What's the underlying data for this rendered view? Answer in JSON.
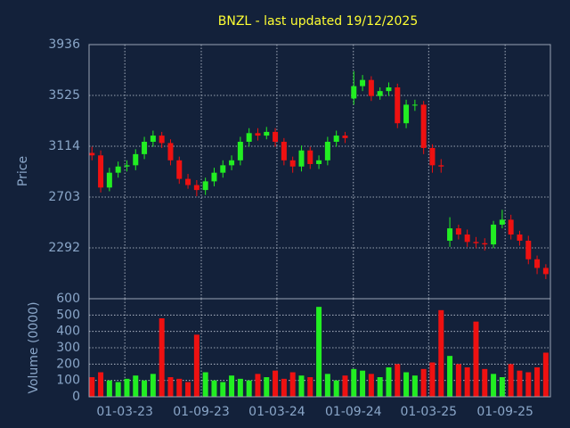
{
  "chart_data": {
    "type": "candlestick",
    "title": "BNZL - last updated 19/12/2025",
    "ylabel": "Price",
    "volume_ylabel": "Volume (0000)",
    "x": [
      "12-12-22",
      "02-01-23",
      "23-01-23",
      "13-02-23",
      "06-03-23",
      "27-03-23",
      "17-04-23",
      "08-05-23",
      "29-05-23",
      "19-06-23",
      "10-07-23",
      "31-07-23",
      "21-08-23",
      "11-09-23",
      "02-10-23",
      "23-10-23",
      "13-11-23",
      "04-12-23",
      "25-12-23",
      "15-01-24",
      "05-02-24",
      "26-02-24",
      "18-03-24",
      "08-04-24",
      "29-04-24",
      "20-05-24",
      "10-06-24",
      "01-07-24",
      "22-07-24",
      "12-08-24",
      "02-09-24",
      "23-09-24",
      "14-10-24",
      "04-11-24",
      "25-11-24",
      "16-12-24",
      "06-01-25",
      "27-01-25",
      "17-02-25",
      "10-03-25",
      "31-03-25",
      "21-04-25",
      "12-05-25",
      "02-06-25",
      "23-06-25",
      "14-07-25",
      "04-08-25",
      "25-08-25",
      "15-09-25",
      "06-10-25",
      "27-10-25",
      "17-11-25",
      "08-12-25"
    ],
    "open": [
      3060,
      3040,
      2780,
      2900,
      2950,
      2960,
      3050,
      3150,
      3200,
      3140,
      3000,
      2850,
      2800,
      2760,
      2830,
      2900,
      2960,
      3000,
      3150,
      3220,
      3200,
      3230,
      3150,
      3000,
      2950,
      3080,
      2970,
      3000,
      3150,
      3200,
      3500,
      3600,
      3650,
      3520,
      3560,
      3590,
      3300,
      3450,
      3450,
      3100,
      2960,
      2350,
      2450,
      2400,
      2340,
      2330,
      2320,
      2480,
      2520,
      2400,
      2350,
      2200,
      2130
    ],
    "high": [
      3110,
      3080,
      2940,
      2990,
      3000,
      3090,
      3190,
      3240,
      3230,
      3170,
      3030,
      2890,
      2840,
      2860,
      2940,
      3000,
      3040,
      3190,
      3260,
      3260,
      3270,
      3260,
      3180,
      3030,
      3120,
      3110,
      3040,
      3190,
      3240,
      3230,
      3720,
      3690,
      3680,
      3590,
      3630,
      3620,
      3490,
      3490,
      3480,
      3130,
      3010,
      2540,
      2480,
      2440,
      2380,
      2370,
      2510,
      2600,
      2560,
      2430,
      2390,
      2230,
      2160
    ],
    "low": [
      3000,
      2740,
      2750,
      2860,
      2910,
      2920,
      3010,
      3110,
      3100,
      2960,
      2810,
      2770,
      2710,
      2720,
      2790,
      2860,
      2920,
      2960,
      3110,
      3160,
      3170,
      3110,
      2960,
      2900,
      2910,
      2930,
      2930,
      2960,
      3110,
      3140,
      3450,
      3560,
      3480,
      3490,
      3520,
      3260,
      3260,
      3400,
      3050,
      2900,
      2900,
      2300,
      2360,
      2300,
      2290,
      2270,
      2290,
      2450,
      2360,
      2310,
      2160,
      2080,
      2040
    ],
    "close": [
      3040,
      2780,
      2900,
      2950,
      2960,
      3050,
      3150,
      3200,
      3140,
      3000,
      2850,
      2800,
      2760,
      2830,
      2900,
      2960,
      3000,
      3150,
      3220,
      3200,
      3230,
      3150,
      3000,
      2950,
      3080,
      2970,
      3000,
      3150,
      3200,
      3180,
      3600,
      3650,
      3520,
      3560,
      3590,
      3300,
      3450,
      3450,
      3100,
      2960,
      2950,
      2450,
      2400,
      2340,
      2330,
      2320,
      2480,
      2520,
      2400,
      2350,
      2200,
      2130,
      2080
    ],
    "volume": [
      120,
      150,
      100,
      90,
      110,
      130,
      100,
      140,
      480,
      120,
      110,
      90,
      380,
      150,
      100,
      90,
      130,
      110,
      100,
      140,
      120,
      160,
      110,
      150,
      130,
      120,
      550,
      140,
      100,
      130,
      170,
      160,
      140,
      120,
      180,
      200,
      150,
      130,
      170,
      210,
      530,
      250,
      200,
      180,
      460,
      170,
      140,
      120,
      200,
      160,
      150,
      180,
      270
    ],
    "up_color": "#22ee22",
    "down_color": "#ee1111",
    "xlim": [
      "05-12-22",
      "19-12-25"
    ],
    "xticks": [
      "01-03-23",
      "01-09-23",
      "01-03-24",
      "01-09-24",
      "01-03-25",
      "01-09-25"
    ],
    "ylim": [
      1881,
      3936
    ],
    "yticks": [
      2292,
      2703,
      3114,
      3525,
      3936
    ],
    "volume_ylim": [
      0,
      600
    ],
    "volume_yticks": [
      0,
      100,
      200,
      300,
      400,
      500,
      600
    ],
    "grid": true
  }
}
